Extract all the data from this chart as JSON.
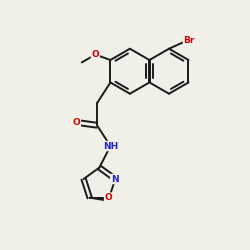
{
  "background_color": "#f0f0e8",
  "bond_color": "#1a1a1a",
  "atom_colors": {
    "O": "#cc0000",
    "N": "#2222cc",
    "Br": "#cc0000",
    "C": "#1a1a1a"
  },
  "figsize": [
    2.5,
    2.5
  ],
  "dpi": 100,
  "xlim": [
    0,
    10
  ],
  "ylim": [
    0,
    10
  ]
}
